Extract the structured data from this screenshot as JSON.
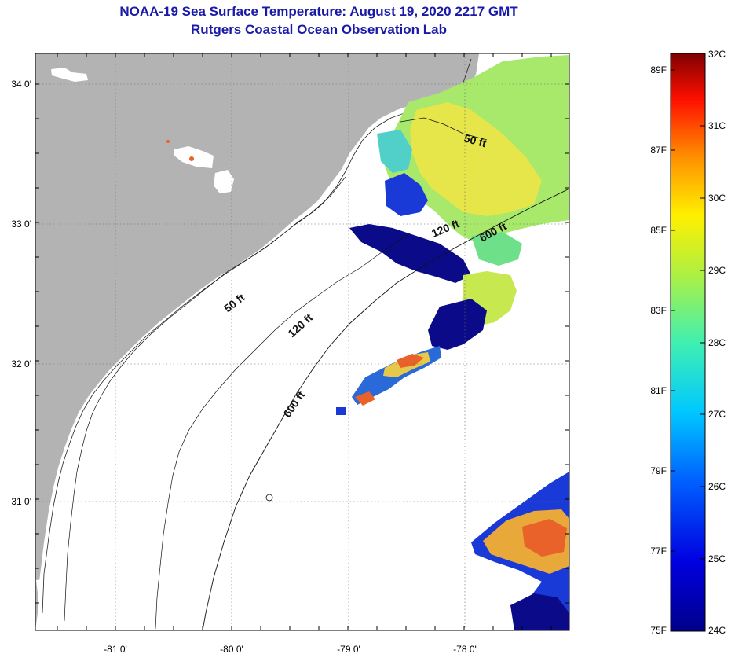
{
  "header": {
    "title": "NOAA-19 Sea Surface Temperature:  August 19, 2020 2217 GMT",
    "subtitle": "Rutgers Coastal Ocean Observation Lab"
  },
  "axes": {
    "lon_ticks": [
      "-81 0'",
      "-80 0'",
      "-79 0'",
      "-78 0'"
    ],
    "lat_ticks": [
      "34 0'",
      "33 0'",
      "32 0'",
      "31 0'"
    ]
  },
  "depth_contours": [
    {
      "label": "50 ft"
    },
    {
      "label": "120 ft"
    },
    {
      "label": "600 ft"
    },
    {
      "label": "50 ft"
    },
    {
      "label": "120 ft"
    },
    {
      "label": "600 ft"
    }
  ],
  "colorbar": {
    "fahrenheit_labels": [
      "89F",
      "87F",
      "85F",
      "83F",
      "81F",
      "79F",
      "77F",
      "75F"
    ],
    "celsius_labels": [
      "32C",
      "31C",
      "30C",
      "29C",
      "28C",
      "27C",
      "26C",
      "25C",
      "24C"
    ]
  },
  "colors": {
    "land": "#b3b3b3",
    "title": "#1a1aa8",
    "sst_warm": "#e8622a",
    "sst_yellow": "#e6e64a",
    "sst_green": "#9be86a",
    "sst_cyan": "#35c7e0",
    "sst_blue": "#1a3ad8",
    "sst_navy": "#0b0b8a"
  }
}
